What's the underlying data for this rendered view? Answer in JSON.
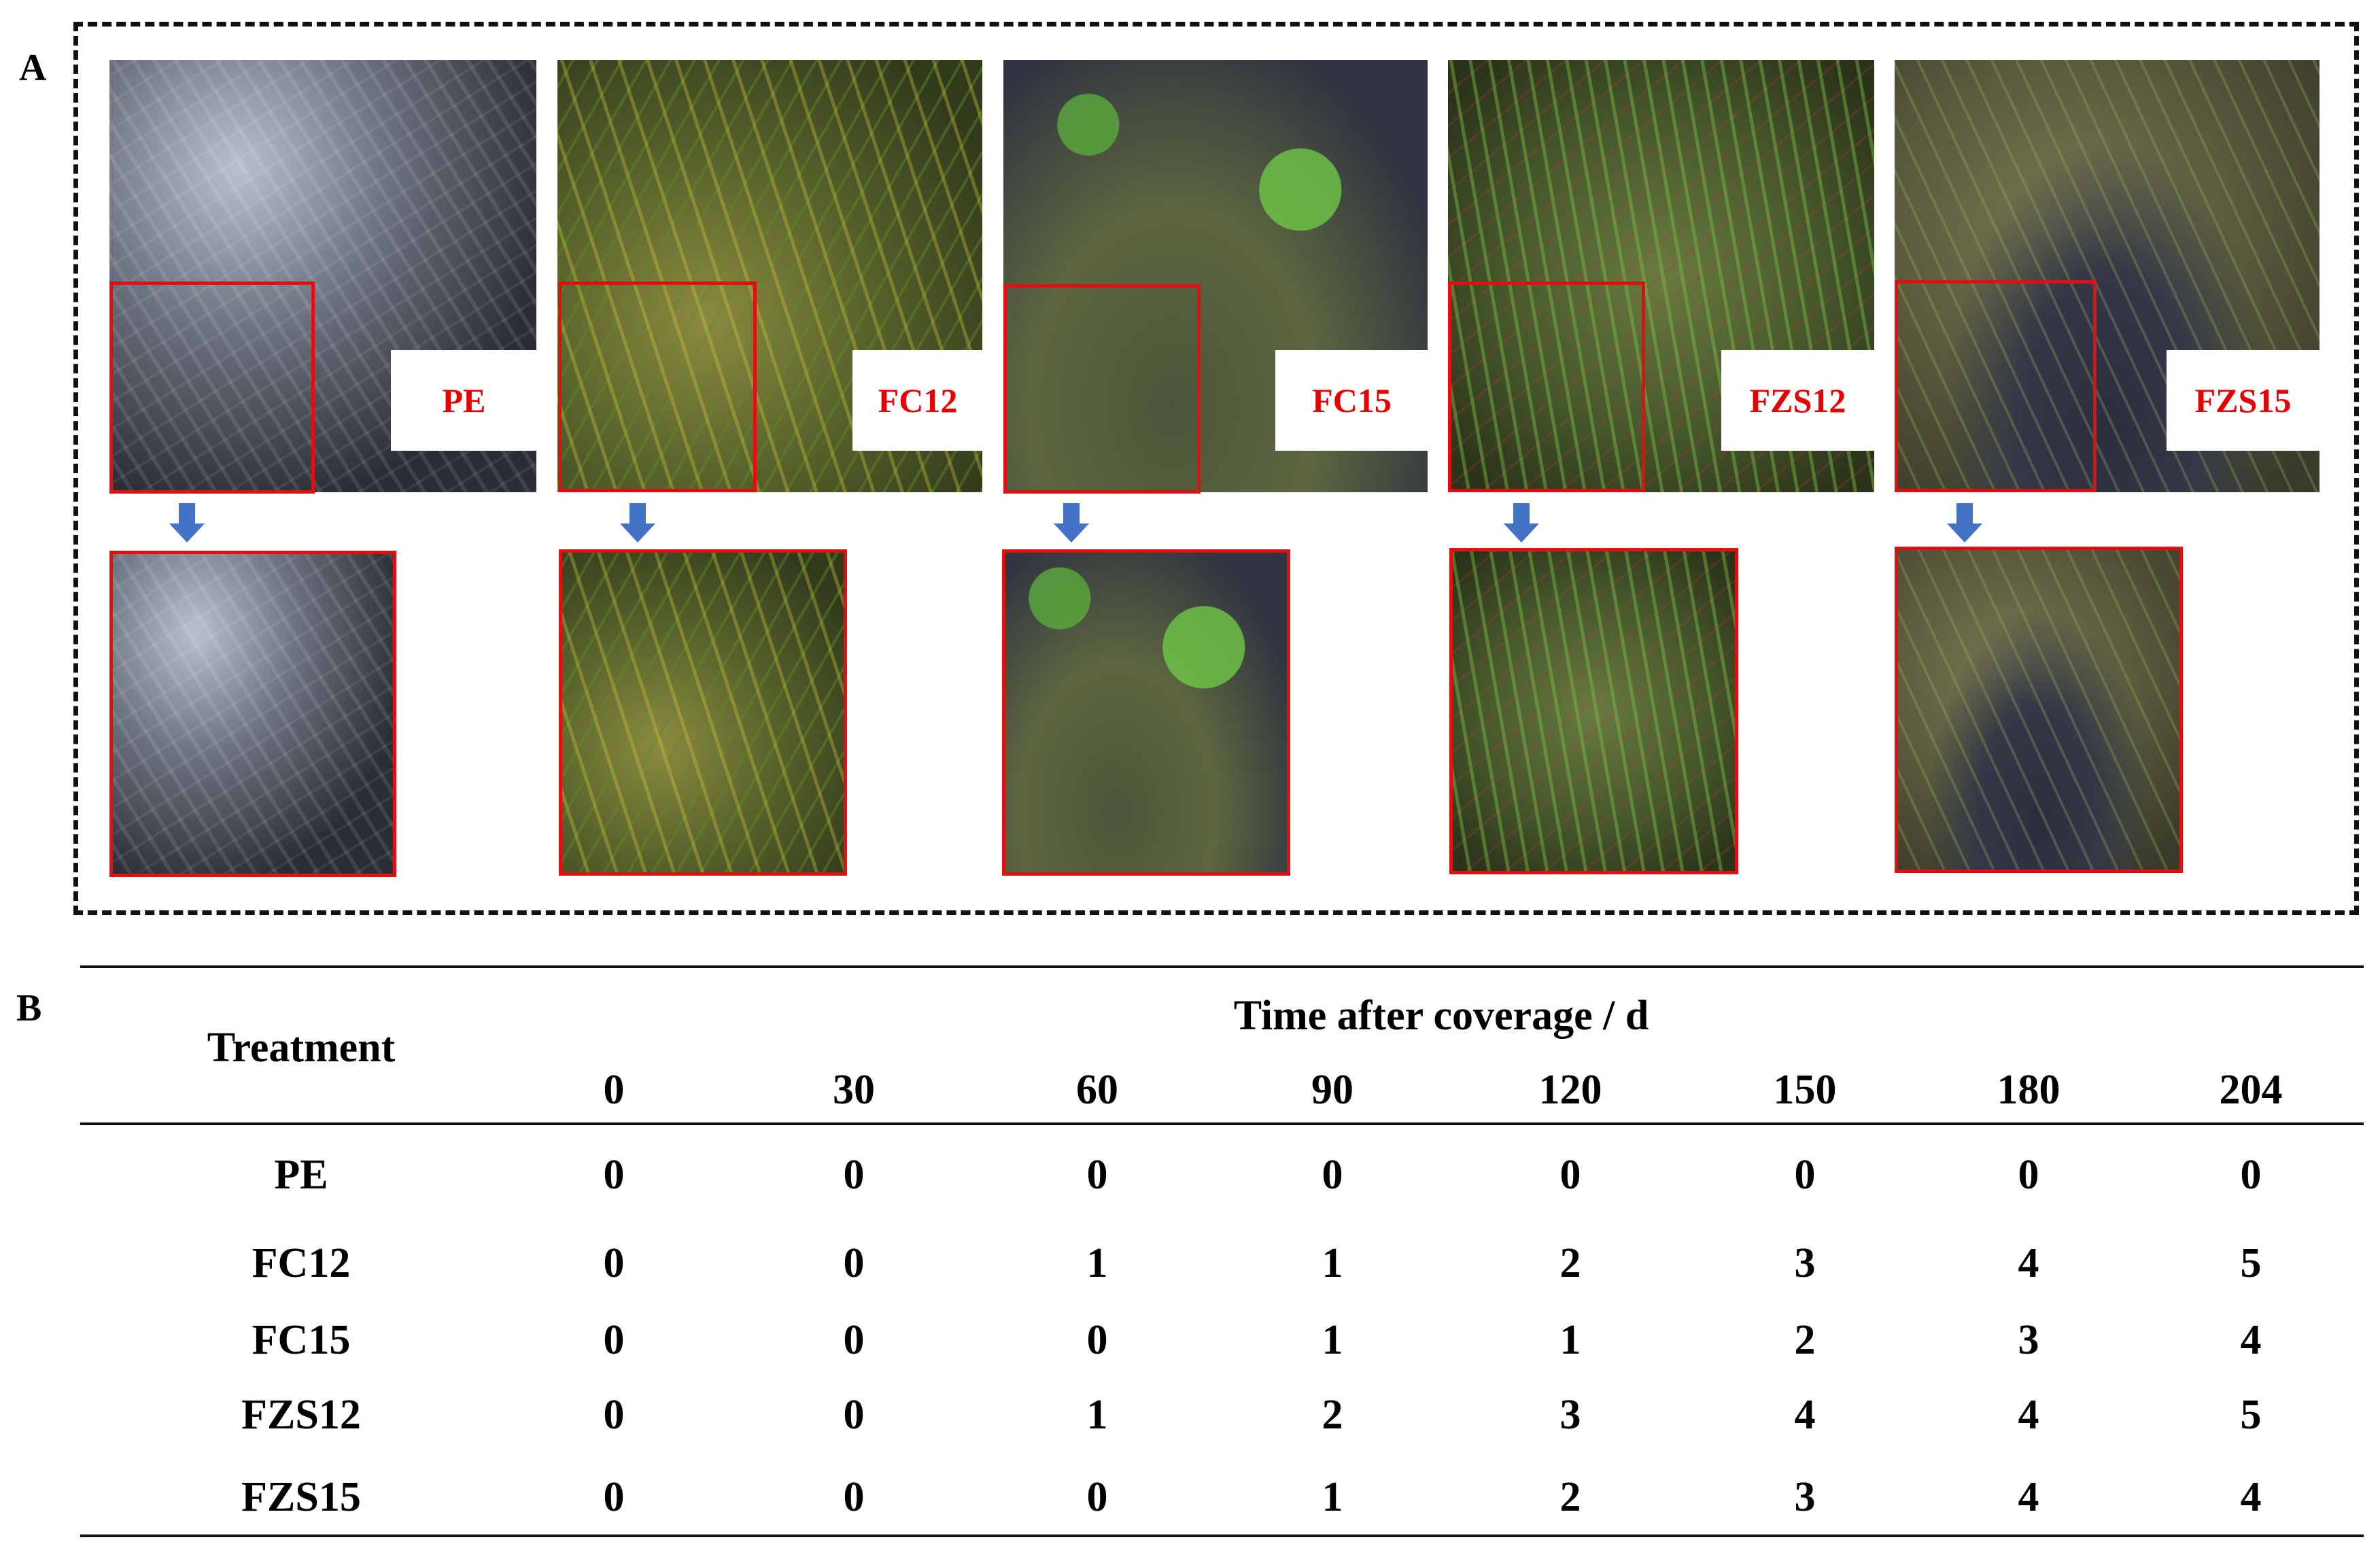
{
  "panel_labels": {
    "a": "A",
    "b": "B"
  },
  "photos": [
    {
      "label": "PE"
    },
    {
      "label": "FC12"
    },
    {
      "label": "FC15"
    },
    {
      "label": "FZS12"
    },
    {
      "label": "FZS15"
    }
  ],
  "colors": {
    "highlight": "#e01010",
    "arrow": "#4472c4",
    "label_text": "#e60000"
  },
  "table": {
    "row_header": "Treatment",
    "group_header": "Time after coverage / d",
    "columns": [
      "0",
      "30",
      "60",
      "90",
      "120",
      "150",
      "180",
      "204"
    ],
    "rows": [
      {
        "treatment": "PE",
        "values": [
          "0",
          "0",
          "0",
          "0",
          "0",
          "0",
          "0",
          "0"
        ]
      },
      {
        "treatment": "FC12",
        "values": [
          "0",
          "0",
          "1",
          "1",
          "2",
          "3",
          "4",
          "5"
        ]
      },
      {
        "treatment": "FC15",
        "values": [
          "0",
          "0",
          "0",
          "1",
          "1",
          "2",
          "3",
          "4"
        ]
      },
      {
        "treatment": "FZS12",
        "values": [
          "0",
          "0",
          "1",
          "2",
          "3",
          "4",
          "4",
          "5"
        ]
      },
      {
        "treatment": "FZS15",
        "values": [
          "0",
          "0",
          "0",
          "1",
          "2",
          "3",
          "4",
          "4"
        ]
      }
    ]
  }
}
